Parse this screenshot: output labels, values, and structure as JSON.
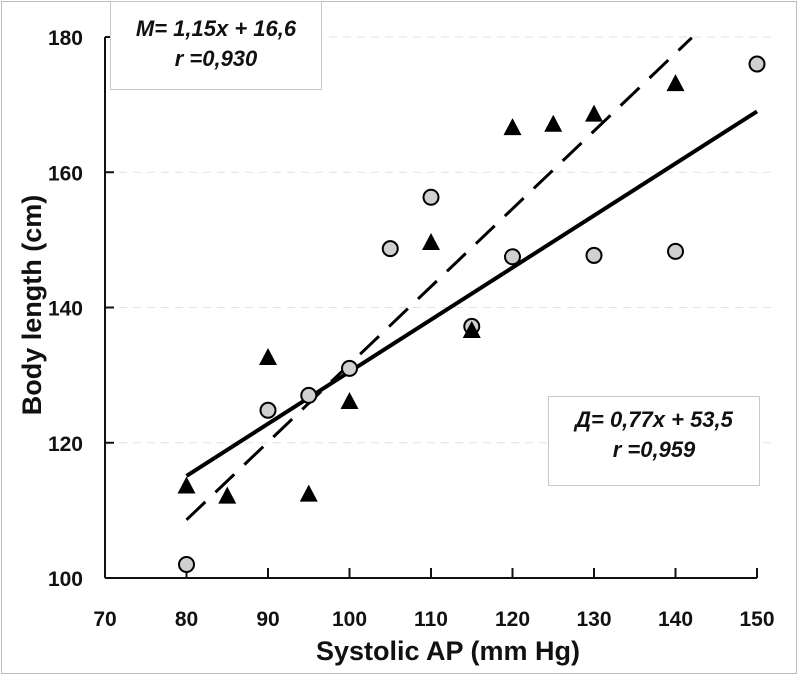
{
  "chart_data": {
    "type": "scatter",
    "title": "",
    "xlabel": "Systolic AP (mm Hg)",
    "ylabel": "Body length (cm)",
    "xlim": [
      70,
      150
    ],
    "ylim": [
      100,
      180
    ],
    "x_ticks": [
      70,
      80,
      90,
      100,
      110,
      120,
      130,
      140,
      150
    ],
    "y_ticks": [
      100,
      120,
      140,
      160,
      180
    ],
    "grid": "horizontal dashed light gray",
    "series": [
      {
        "name": "Д",
        "marker": "circle",
        "color": "#d0d0d0",
        "points": [
          {
            "x": 80,
            "y": 102
          },
          {
            "x": 90,
            "y": 124.8
          },
          {
            "x": 95,
            "y": 127
          },
          {
            "x": 100,
            "y": 131
          },
          {
            "x": 105,
            "y": 148.7
          },
          {
            "x": 110,
            "y": 156.3
          },
          {
            "x": 115,
            "y": 137.2
          },
          {
            "x": 120,
            "y": 147.5
          },
          {
            "x": 130,
            "y": 147.7
          },
          {
            "x": 140,
            "y": 148.3
          },
          {
            "x": 150,
            "y": 176
          }
        ],
        "trendline": {
          "slope": 0.77,
          "intercept": 53.5,
          "style": "solid",
          "x_range": [
            80,
            150
          ]
        }
      },
      {
        "name": "M",
        "marker": "triangle",
        "color": "#000000",
        "points": [
          {
            "x": 80,
            "y": 113.5
          },
          {
            "x": 85,
            "y": 112
          },
          {
            "x": 90,
            "y": 132.5
          },
          {
            "x": 95,
            "y": 112.3
          },
          {
            "x": 100,
            "y": 126
          },
          {
            "x": 110,
            "y": 149.5
          },
          {
            "x": 115,
            "y": 136.5
          },
          {
            "x": 120,
            "y": 166.5
          },
          {
            "x": 125,
            "y": 167
          },
          {
            "x": 130,
            "y": 168.5
          },
          {
            "x": 140,
            "y": 173
          }
        ],
        "trendline": {
          "slope": 1.15,
          "intercept": 16.6,
          "style": "dashed",
          "x_range": [
            80,
            142
          ]
        }
      }
    ],
    "annotations": [
      {
        "id": "eq-m",
        "line1": "M= 1,15x + 16,6",
        "line2": "r  =0,930",
        "placement": "top-left"
      },
      {
        "id": "eq-d",
        "line1": "Д= 0,77x + 53,5",
        "line2": "r =0,959",
        "placement": "center-right"
      }
    ]
  }
}
